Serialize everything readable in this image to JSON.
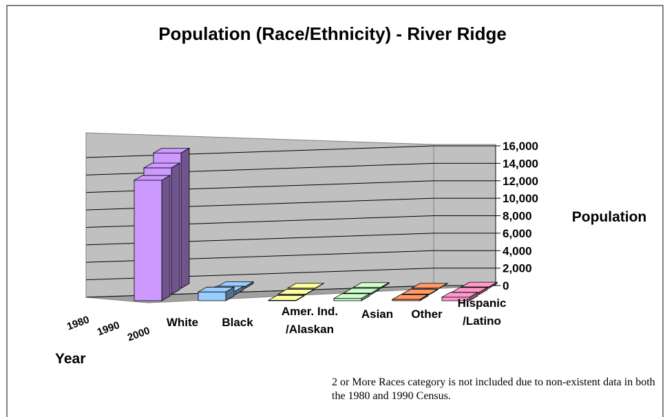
{
  "chart_data": {
    "type": "bar3d",
    "title": "Population (Race/Ethnicity) - River Ridge",
    "categories": [
      "White",
      "Black",
      "Amer. Ind.\n/Alaskan",
      "Asian",
      "Other",
      "Hispanic\n/Latino"
    ],
    "colors": [
      "#cc99ff",
      "#99ccff",
      "#ffff99",
      "#ccffcc",
      "#ff9966",
      "#ff99cc"
    ],
    "series": [
      {
        "name": "1980",
        "values": [
          15500,
          200,
          20,
          100,
          20,
          150
        ]
      },
      {
        "name": "1990",
        "values": [
          14500,
          400,
          30,
          150,
          50,
          250
        ]
      },
      {
        "name": "2000",
        "values": [
          13800,
          1000,
          40,
          250,
          150,
          400
        ]
      }
    ],
    "ylabel": "Population",
    "depth_label": "Year",
    "ylim": [
      0,
      16000
    ],
    "yticks": [
      0,
      {
        "value": 2000,
        "label": "2,000"
      },
      {
        "value": 4000,
        "label": "4,000"
      },
      {
        "value": 6000,
        "label": "6,000"
      },
      {
        "value": 8000,
        "label": "8,000"
      },
      {
        "value": 10000,
        "label": "10,000"
      },
      {
        "value": 12000,
        "label": "12,000"
      },
      {
        "value": 14000,
        "label": "14,000"
      },
      {
        "value": 16000,
        "label": "16,000"
      }
    ],
    "grid": true,
    "note": "2 or More Races category is not included due to non-existent data in both the 1980 and 1990 Census."
  }
}
